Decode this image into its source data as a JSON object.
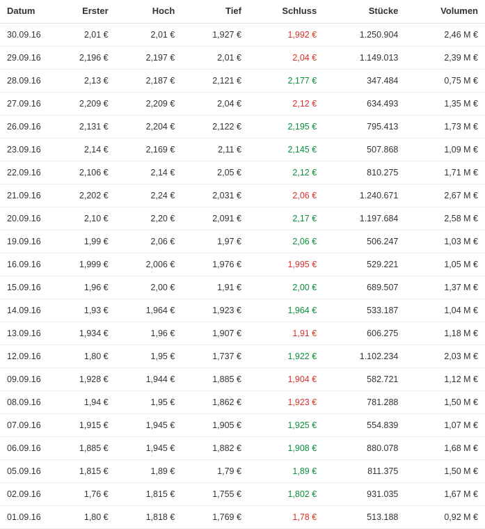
{
  "table": {
    "columns": [
      {
        "key": "datum",
        "label": "Datum",
        "align": "left"
      },
      {
        "key": "erster",
        "label": "Erster",
        "align": "right"
      },
      {
        "key": "hoch",
        "label": "Hoch",
        "align": "right"
      },
      {
        "key": "tief",
        "label": "Tief",
        "align": "right"
      },
      {
        "key": "schluss",
        "label": "Schluss",
        "align": "right"
      },
      {
        "key": "stuecke",
        "label": "Stücke",
        "align": "right"
      },
      {
        "key": "volumen",
        "label": "Volumen",
        "align": "right"
      }
    ],
    "colors": {
      "text": "#333333",
      "up": "#0a8f3c",
      "down": "#d9322b",
      "border": "#eeeeee",
      "header_border": "#e0e0e0",
      "background": "#ffffff"
    },
    "font_size_header": 13,
    "font_size_body": 12.5,
    "rows": [
      {
        "datum": "30.09.16",
        "erster": "2,01 €",
        "hoch": "2,01 €",
        "tief": "1,927 €",
        "schluss": "1,992 €",
        "schluss_dir": "down",
        "stuecke": "1.250.904",
        "volumen": "2,46 M €"
      },
      {
        "datum": "29.09.16",
        "erster": "2,196 €",
        "hoch": "2,197 €",
        "tief": "2,01 €",
        "schluss": "2,04 €",
        "schluss_dir": "down",
        "stuecke": "1.149.013",
        "volumen": "2,39 M €"
      },
      {
        "datum": "28.09.16",
        "erster": "2,13 €",
        "hoch": "2,187 €",
        "tief": "2,121 €",
        "schluss": "2,177 €",
        "schluss_dir": "up",
        "stuecke": "347.484",
        "volumen": "0,75 M €"
      },
      {
        "datum": "27.09.16",
        "erster": "2,209 €",
        "hoch": "2,209 €",
        "tief": "2,04 €",
        "schluss": "2,12 €",
        "schluss_dir": "down",
        "stuecke": "634.493",
        "volumen": "1,35 M €"
      },
      {
        "datum": "26.09.16",
        "erster": "2,131 €",
        "hoch": "2,204 €",
        "tief": "2,122 €",
        "schluss": "2,195 €",
        "schluss_dir": "up",
        "stuecke": "795.413",
        "volumen": "1,73 M €"
      },
      {
        "datum": "23.09.16",
        "erster": "2,14 €",
        "hoch": "2,169 €",
        "tief": "2,11 €",
        "schluss": "2,145 €",
        "schluss_dir": "up",
        "stuecke": "507.868",
        "volumen": "1,09 M €"
      },
      {
        "datum": "22.09.16",
        "erster": "2,106 €",
        "hoch": "2,14 €",
        "tief": "2,05 €",
        "schluss": "2,12 €",
        "schluss_dir": "up",
        "stuecke": "810.275",
        "volumen": "1,71 M €"
      },
      {
        "datum": "21.09.16",
        "erster": "2,202 €",
        "hoch": "2,24 €",
        "tief": "2,031 €",
        "schluss": "2,06 €",
        "schluss_dir": "down",
        "stuecke": "1.240.671",
        "volumen": "2,67 M €"
      },
      {
        "datum": "20.09.16",
        "erster": "2,10 €",
        "hoch": "2,20 €",
        "tief": "2,091 €",
        "schluss": "2,17 €",
        "schluss_dir": "up",
        "stuecke": "1.197.684",
        "volumen": "2,58 M €"
      },
      {
        "datum": "19.09.16",
        "erster": "1,99 €",
        "hoch": "2,06 €",
        "tief": "1,97 €",
        "schluss": "2,06 €",
        "schluss_dir": "up",
        "stuecke": "506.247",
        "volumen": "1,03 M €"
      },
      {
        "datum": "16.09.16",
        "erster": "1,999 €",
        "hoch": "2,006 €",
        "tief": "1,976 €",
        "schluss": "1,995 €",
        "schluss_dir": "down",
        "stuecke": "529.221",
        "volumen": "1,05 M €"
      },
      {
        "datum": "15.09.16",
        "erster": "1,96 €",
        "hoch": "2,00 €",
        "tief": "1,91 €",
        "schluss": "2,00 €",
        "schluss_dir": "up",
        "stuecke": "689.507",
        "volumen": "1,37 M €"
      },
      {
        "datum": "14.09.16",
        "erster": "1,93 €",
        "hoch": "1,964 €",
        "tief": "1,923 €",
        "schluss": "1,964 €",
        "schluss_dir": "up",
        "stuecke": "533.187",
        "volumen": "1,04 M €"
      },
      {
        "datum": "13.09.16",
        "erster": "1,934 €",
        "hoch": "1,96 €",
        "tief": "1,907 €",
        "schluss": "1,91 €",
        "schluss_dir": "down",
        "stuecke": "606.275",
        "volumen": "1,18 M €"
      },
      {
        "datum": "12.09.16",
        "erster": "1,80 €",
        "hoch": "1,95 €",
        "tief": "1,737 €",
        "schluss": "1,922 €",
        "schluss_dir": "up",
        "stuecke": "1.102.234",
        "volumen": "2,03 M €"
      },
      {
        "datum": "09.09.16",
        "erster": "1,928 €",
        "hoch": "1,944 €",
        "tief": "1,885 €",
        "schluss": "1,904 €",
        "schluss_dir": "down",
        "stuecke": "582.721",
        "volumen": "1,12 M €"
      },
      {
        "datum": "08.09.16",
        "erster": "1,94 €",
        "hoch": "1,95 €",
        "tief": "1,862 €",
        "schluss": "1,923 €",
        "schluss_dir": "down",
        "stuecke": "781.288",
        "volumen": "1,50 M €"
      },
      {
        "datum": "07.09.16",
        "erster": "1,915 €",
        "hoch": "1,945 €",
        "tief": "1,905 €",
        "schluss": "1,925 €",
        "schluss_dir": "up",
        "stuecke": "554.839",
        "volumen": "1,07 M €"
      },
      {
        "datum": "06.09.16",
        "erster": "1,885 €",
        "hoch": "1,945 €",
        "tief": "1,882 €",
        "schluss": "1,908 €",
        "schluss_dir": "up",
        "stuecke": "880.078",
        "volumen": "1,68 M €"
      },
      {
        "datum": "05.09.16",
        "erster": "1,815 €",
        "hoch": "1,89 €",
        "tief": "1,79 €",
        "schluss": "1,89 €",
        "schluss_dir": "up",
        "stuecke": "811.375",
        "volumen": "1,50 M €"
      },
      {
        "datum": "02.09.16",
        "erster": "1,76 €",
        "hoch": "1,815 €",
        "tief": "1,755 €",
        "schluss": "1,802 €",
        "schluss_dir": "up",
        "stuecke": "931.035",
        "volumen": "1,67 M €"
      },
      {
        "datum": "01.09.16",
        "erster": "1,80 €",
        "hoch": "1,818 €",
        "tief": "1,769 €",
        "schluss": "1,78 €",
        "schluss_dir": "down",
        "stuecke": "513.188",
        "volumen": "0,92 M €"
      }
    ]
  }
}
